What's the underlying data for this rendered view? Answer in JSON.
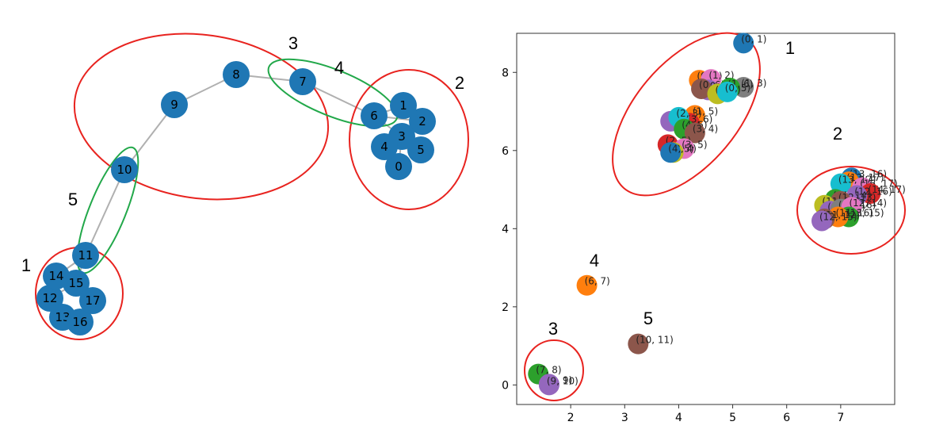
{
  "graph": {
    "nodes": [
      {
        "id": "0",
        "label": "0"
      },
      {
        "id": "1",
        "label": "1"
      },
      {
        "id": "2",
        "label": "2"
      },
      {
        "id": "3",
        "label": "3"
      },
      {
        "id": "4",
        "label": "4"
      },
      {
        "id": "5",
        "label": "5"
      },
      {
        "id": "6",
        "label": "6"
      },
      {
        "id": "7",
        "label": "7"
      },
      {
        "id": "8",
        "label": "8"
      },
      {
        "id": "9",
        "label": "9"
      },
      {
        "id": "10",
        "label": "10"
      },
      {
        "id": "11",
        "label": "11"
      },
      {
        "id": "12",
        "label": "12"
      },
      {
        "id": "13",
        "label": "13"
      },
      {
        "id": "14",
        "label": "14"
      },
      {
        "id": "15",
        "label": "15"
      },
      {
        "id": "16",
        "label": "16"
      },
      {
        "id": "17",
        "label": "17"
      }
    ],
    "edges": [
      [
        "6",
        "7"
      ],
      [
        "7",
        "8"
      ],
      [
        "8",
        "9"
      ],
      [
        "9",
        "10"
      ],
      [
        "10",
        "11"
      ],
      [
        "6",
        "1"
      ],
      [
        "6",
        "3"
      ],
      [
        "6",
        "2"
      ],
      [
        "3",
        "4"
      ],
      [
        "3",
        "5"
      ],
      [
        "3",
        "0"
      ],
      [
        "1",
        "2"
      ],
      [
        "4",
        "5"
      ],
      [
        "11",
        "14"
      ],
      [
        "11",
        "15"
      ],
      [
        "15",
        "17"
      ],
      [
        "15",
        "12"
      ],
      [
        "12",
        "13"
      ],
      [
        "13",
        "16"
      ],
      [
        "16",
        "17"
      ],
      [
        "14",
        "12"
      ]
    ],
    "node_color": "#1f77b4",
    "edge_color": "#b0b0b0",
    "groups": [
      {
        "label": "1",
        "members": [
          "11",
          "12",
          "13",
          "14",
          "15",
          "16",
          "17"
        ],
        "color": "#e8231f"
      },
      {
        "label": "2",
        "members": [
          "0",
          "1",
          "2",
          "3",
          "4",
          "5",
          "6"
        ],
        "color": "#e8231f"
      },
      {
        "label": "3",
        "members": [
          "7",
          "8",
          "9",
          "10"
        ],
        "color": "#e8231f"
      },
      {
        "label": "4",
        "members": [
          "6",
          "7"
        ],
        "color": "#22a84a"
      },
      {
        "label": "5",
        "members": [
          "10",
          "11"
        ],
        "color": "#22a84a"
      }
    ]
  },
  "chart_data": {
    "type": "scatter",
    "title": "",
    "xlabel": "",
    "ylabel": "",
    "xlim": [
      1.0,
      8.0
    ],
    "ylim": [
      -0.5,
      9.0
    ],
    "xticks": [
      "2",
      "3",
      "4",
      "5",
      "6",
      "7"
    ],
    "yticks": [
      "0",
      "2",
      "4",
      "6",
      "8"
    ],
    "points": [
      {
        "label": "(0, 1)",
        "x": 5.2,
        "y": 8.75,
        "color": "#1f77b4"
      },
      {
        "label": "(0, 2)",
        "x": 4.38,
        "y": 7.8,
        "color": "#ff7f0e"
      },
      {
        "label": "(1, 2)",
        "x": 4.6,
        "y": 7.82,
        "color": "#e377c2"
      },
      {
        "label": "(0, 3)",
        "x": 4.55,
        "y": 7.55,
        "color": "#9467bd"
      },
      {
        "label": "(0, 6)",
        "x": 4.42,
        "y": 7.58,
        "color": "#8c564b"
      },
      {
        "label": "(1, 3)",
        "x": 5.2,
        "y": 7.62,
        "color": "#7f7f7f"
      },
      {
        "label": "(1, 6)",
        "x": 4.95,
        "y": 7.6,
        "color": "#2ca02c"
      },
      {
        "label": "(0, 4)",
        "x": 4.72,
        "y": 7.45,
        "color": "#bcbd22"
      },
      {
        "label": "(0, 5)",
        "x": 4.9,
        "y": 7.5,
        "color": "#17becf"
      },
      {
        "label": "(2, 6)",
        "x": 3.85,
        "y": 6.75,
        "color": "#9467bd"
      },
      {
        "label": "(1, 5)",
        "x": 4.3,
        "y": 6.9,
        "color": "#ff7f0e"
      },
      {
        "label": "(3, 6)",
        "x": 4.2,
        "y": 6.7,
        "color": "#d62728"
      },
      {
        "label": "(2, 3)",
        "x": 4.0,
        "y": 6.85,
        "color": "#17becf"
      },
      {
        "label": "(4, 6)",
        "x": 4.1,
        "y": 6.55,
        "color": "#2ca02c"
      },
      {
        "label": "(3, 4)",
        "x": 4.3,
        "y": 6.45,
        "color": "#8c564b"
      },
      {
        "label": "(2, 5)",
        "x": 3.8,
        "y": 6.15,
        "color": "#d62728"
      },
      {
        "label": "(3, 5)",
        "x": 4.1,
        "y": 6.05,
        "color": "#e377c2"
      },
      {
        "label": "(2, 4)",
        "x": 3.9,
        "y": 5.95,
        "color": "#bcbd22"
      },
      {
        "label": "(4, 5)",
        "x": 3.85,
        "y": 5.95,
        "color": "#1f77b4"
      },
      {
        "label": "(13, 16)",
        "x": 7.2,
        "y": 5.3,
        "color": "#1f77b4"
      },
      {
        "label": "(12, 17)",
        "x": 7.15,
        "y": 5.2,
        "color": "#ff7f0e"
      },
      {
        "label": "(16, 17)",
        "x": 7.4,
        "y": 5.05,
        "color": "#e377c2"
      },
      {
        "label": "(13, 17)",
        "x": 7.0,
        "y": 5.15,
        "color": "#17becf"
      },
      {
        "label": "(14, 17)",
        "x": 7.55,
        "y": 4.9,
        "color": "#d62728"
      },
      {
        "label": "(12, 16)",
        "x": 7.3,
        "y": 4.85,
        "color": "#9467bd"
      },
      {
        "label": "(11, 14)",
        "x": 6.9,
        "y": 4.75,
        "color": "#2ca02c"
      },
      {
        "label": "(12, 13)",
        "x": 7.0,
        "y": 4.7,
        "color": "#8c564b"
      },
      {
        "label": "(11, 15)",
        "x": 6.7,
        "y": 4.6,
        "color": "#bcbd22"
      },
      {
        "label": "(14, 15)",
        "x": 6.8,
        "y": 4.45,
        "color": "#9467bd"
      },
      {
        "label": "(15, 16)",
        "x": 7.0,
        "y": 4.5,
        "color": "#7f7f7f"
      },
      {
        "label": "(12, 14)",
        "x": 7.2,
        "y": 4.55,
        "color": "#e377c2"
      },
      {
        "label": "(13, 15)",
        "x": 7.15,
        "y": 4.3,
        "color": "#2ca02c"
      },
      {
        "label": "(11, 16)",
        "x": 6.95,
        "y": 4.3,
        "color": "#ff7f0e"
      },
      {
        "label": "(11, 12)",
        "x": 6.7,
        "y": 4.25,
        "color": "#8c564b"
      },
      {
        "label": "(12, 15)",
        "x": 6.65,
        "y": 4.2,
        "color": "#9467bd"
      },
      {
        "label": "(6, 7)",
        "x": 2.3,
        "y": 2.55,
        "color": "#ff7f0e"
      },
      {
        "label": "(10, 11)",
        "x": 3.25,
        "y": 1.05,
        "color": "#8c564b"
      },
      {
        "label": "(7, 8)",
        "x": 1.4,
        "y": 0.28,
        "color": "#2ca02c"
      },
      {
        "label": "(8, 9)",
        "x": 1.6,
        "y": 0.02,
        "color": "#9467bd"
      },
      {
        "label": "(9, 10)",
        "x": 1.6,
        "y": 0.0,
        "color": "#9467bd"
      }
    ],
    "groups": [
      {
        "label": "1",
        "color": "#e8231f"
      },
      {
        "label": "2",
        "color": "#e8231f"
      },
      {
        "label": "3",
        "color": "#e8231f"
      },
      {
        "label": "4",
        "color": "#000000"
      },
      {
        "label": "5",
        "color": "#000000"
      }
    ]
  }
}
